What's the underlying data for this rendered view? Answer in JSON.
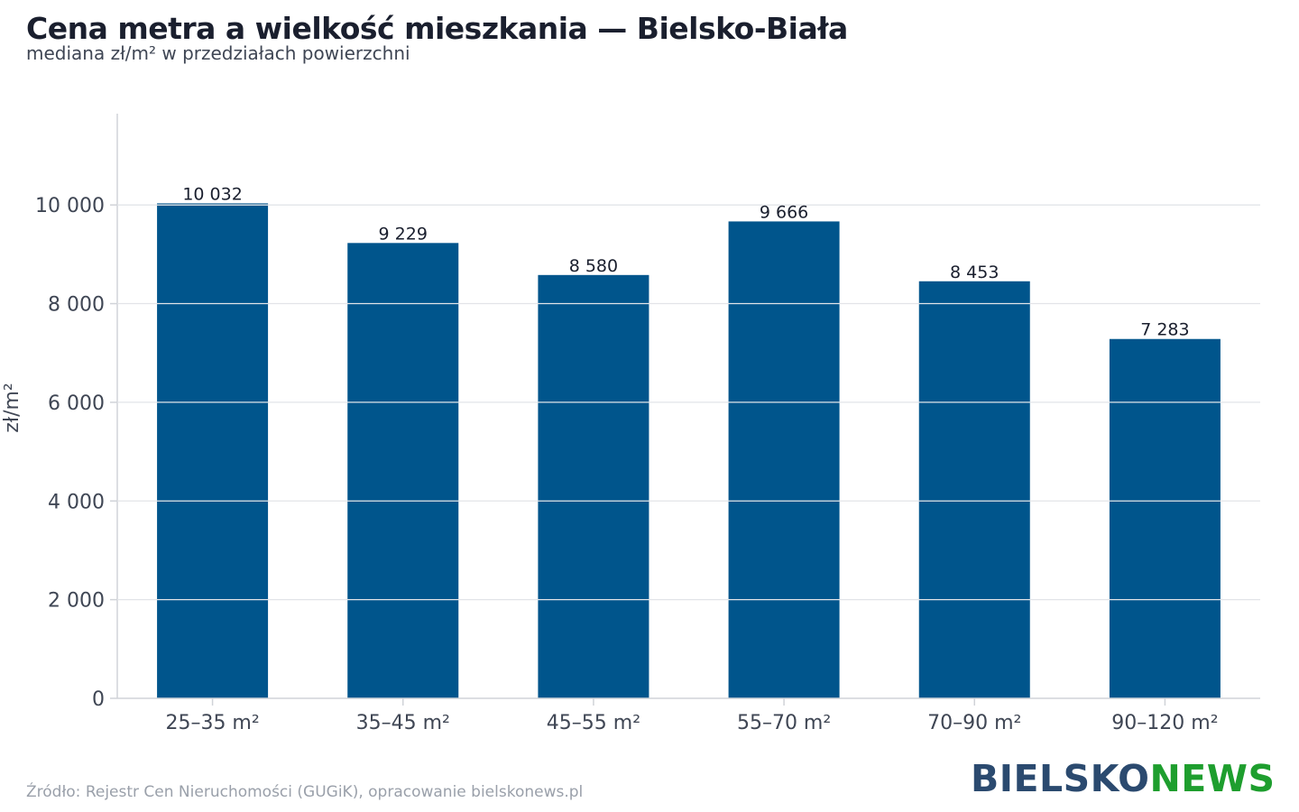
{
  "header": {
    "title": "Cena metra a wielkość mieszkania — Bielsko-Biała",
    "subtitle": "mediana zł/m² w przedziałach powierzchni"
  },
  "footer": {
    "source": "Źródło: Rejestr Cen Nieruchomości (GUGiK), opracowanie bielskonews.pl",
    "logo_part1": "BIELSKO",
    "logo_part2": "NEWS"
  },
  "colors": {
    "bar": "#00558c",
    "grid": "#e2e4e8",
    "axis": "#d0d3d8"
  },
  "chart_data": {
    "type": "bar",
    "title": "Cena metra a wielkość mieszkania — Bielsko-Biała",
    "subtitle": "mediana zł/m² w przedziałach powierzchni",
    "ylabel": "zł/m²",
    "xlabel": "",
    "categories": [
      "25–35 m²",
      "35–45 m²",
      "45–55 m²",
      "55–70 m²",
      "70–90 m²",
      "90–120 m²"
    ],
    "values": [
      10032,
      9229,
      8580,
      9666,
      8453,
      7283
    ],
    "value_labels": [
      "10 032",
      "9 229",
      "8 580",
      "9 666",
      "8 453",
      "7 283"
    ],
    "ylim": [
      0,
      11850
    ],
    "yticks": [
      0,
      2000,
      4000,
      6000,
      8000,
      10000
    ],
    "ytick_labels": [
      "0",
      "2 000",
      "4 000",
      "6 000",
      "8 000",
      "10 000"
    ],
    "grid": true,
    "legend": "none"
  }
}
